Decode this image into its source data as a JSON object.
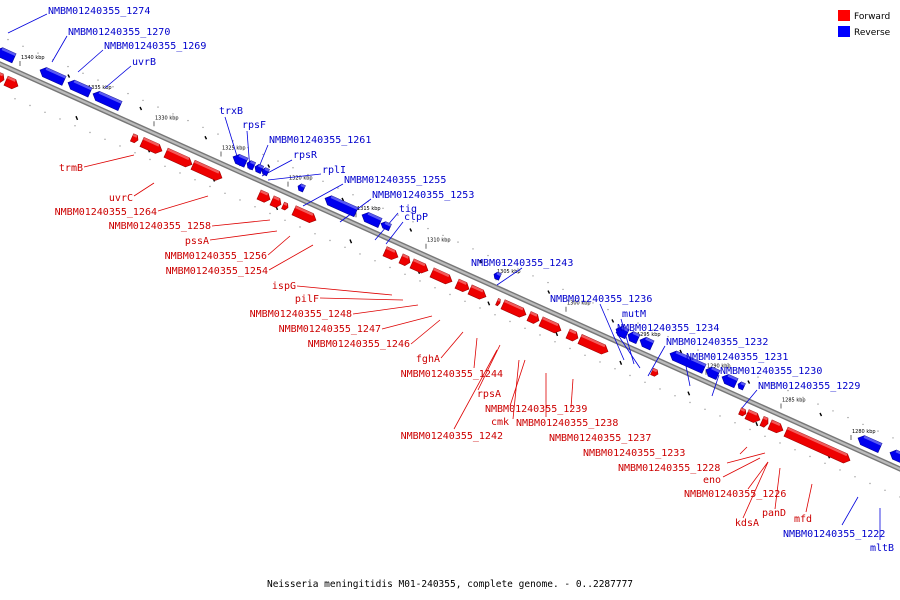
{
  "caption": "Neisseria meningitidis M01-240355, complete genome. - 0..2287777",
  "legend": [
    {
      "label": "Forward",
      "color": "#ff0000"
    },
    {
      "label": "Reverse",
      "color": "#0000ff"
    }
  ],
  "ticks": [
    "1340 kbp",
    "1335 kbp",
    "1330 kbp",
    "1325 kbp",
    "1320 kbp",
    "1315 kbp",
    "1310 kbp",
    "1305 kbp",
    "1300 kbp",
    "1295 kbp",
    "1290 kbp",
    "1285 kbp",
    "1280 kbp"
  ],
  "forward_genes": [
    "trmB",
    "uvrC",
    "NMBM01240355_1264",
    "NMBM01240355_1258",
    "pssA",
    "NMBM01240355_1256",
    "NMBM01240355_1254",
    "ispG",
    "pilF",
    "NMBM01240355_1248",
    "NMBM01240355_1247",
    "NMBM01240355_1246",
    "fghA",
    "NMBM01240355_1244",
    "rpsA",
    "NMBM01240355_1242",
    "NMBM01240355_1239",
    "cmk",
    "NMBM01240355_1238",
    "NMBM01240355_1237",
    "NMBM01240355_1233",
    "NMBM01240355_1228",
    "eno",
    "NMBM01240355_1226",
    "kdsA",
    "panD",
    "mfd"
  ],
  "reverse_genes": [
    "NMBM01240355_1274",
    "NMBM01240355_1270",
    "NMBM01240355_1269",
    "uvrB",
    "trxB",
    "rpsF",
    "NMBM01240355_1261",
    "rpsR",
    "rplI",
    "NMBM01240355_1255",
    "NMBM01240355_1253",
    "tig",
    "clpP",
    "NMBM01240355_1243",
    "NMBM01240355_1236",
    "mutM",
    "NMBM01240355_1234",
    "NMBM01240355_1232",
    "NMBM01240355_1231",
    "NMBM01240355_1230",
    "NMBM01240355_1229",
    "NMBM01240355_1222",
    "mltB"
  ]
}
